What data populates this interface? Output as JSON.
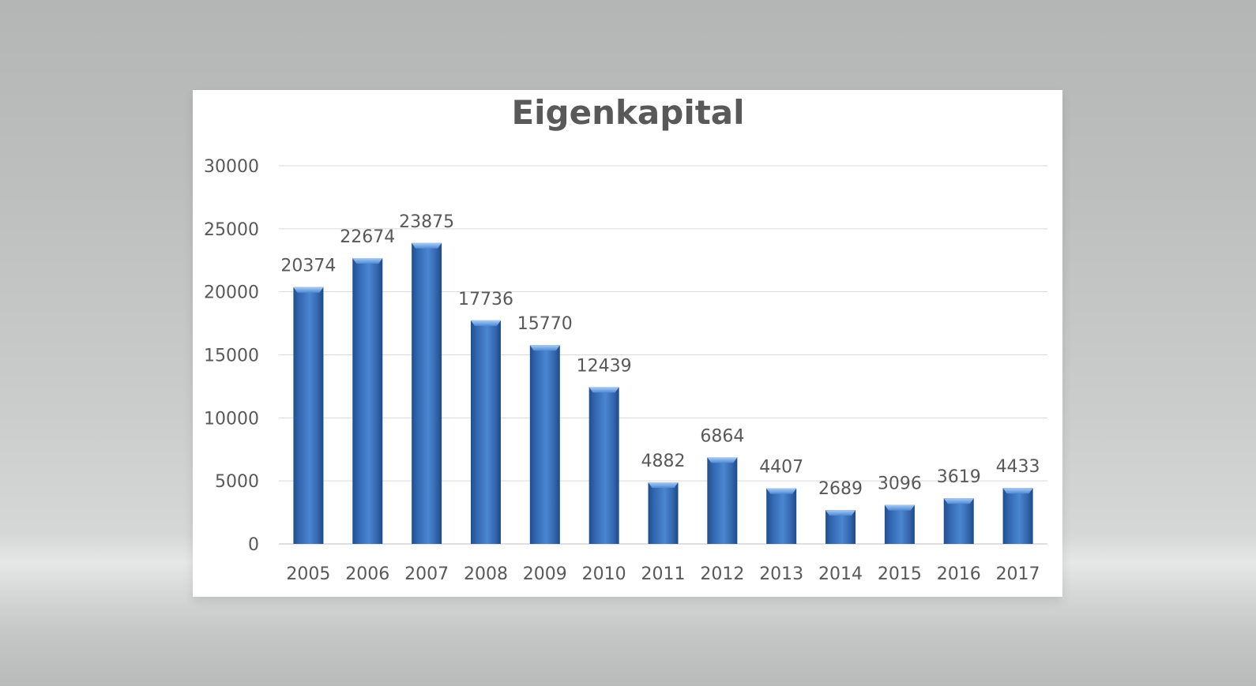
{
  "chart_data": {
    "type": "bar",
    "title": "Eigenkapital",
    "xlabel": "",
    "ylabel": "",
    "ylim": [
      0,
      30000
    ],
    "y_ticks": [
      "0",
      "5000",
      "10000",
      "15000",
      "20000",
      "25000",
      "30000"
    ],
    "categories": [
      "2005",
      "2006",
      "2007",
      "2008",
      "2009",
      "2010",
      "2011",
      "2012",
      "2013",
      "2014",
      "2015",
      "2016",
      "2017"
    ],
    "values": [
      20374,
      22674,
      23875,
      17736,
      15770,
      12439,
      4882,
      6864,
      4407,
      2689,
      3096,
      3619,
      4433
    ],
    "data_labels": [
      "20374",
      "22674",
      "23875",
      "17736",
      "15770",
      "12439",
      "4882",
      "6864",
      "4407",
      "2689",
      "3096",
      "3619",
      "4433"
    ],
    "grid": true,
    "legend": "none",
    "bar_color": "#3a75c4"
  }
}
